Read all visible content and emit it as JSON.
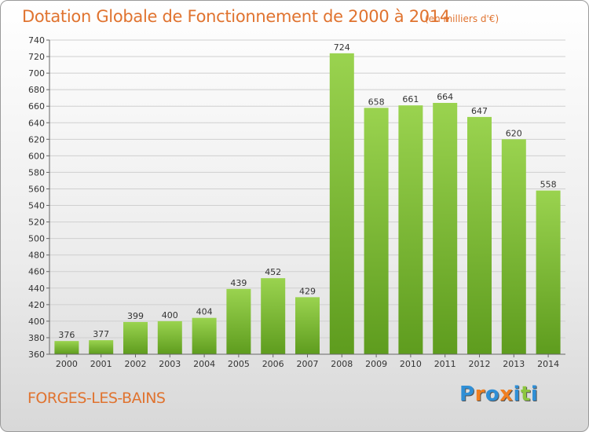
{
  "title": "Dotation Globale de Fonctionnement de 2000 à 2014",
  "unit": "(en milliers d'€)",
  "commune": "FORGES-LES-BAINS",
  "logo": {
    "letters": [
      "P",
      "r",
      "o",
      "x",
      "i",
      "t",
      "i"
    ],
    "colors": [
      "#2f8fd6",
      "#f07f20",
      "#2f8fd6",
      "#f07f20",
      "#2f8fd6",
      "#8dc63f",
      "#2f8fd6"
    ]
  },
  "colors": {
    "bar_top": "#9ad34f",
    "bar_bottom": "#5e9c1e",
    "text_accent": "#e0732f"
  },
  "chart_data": {
    "type": "bar",
    "title": "Dotation Globale de Fonctionnement de 2000 à 2014",
    "subtitle": "(en milliers d'€)",
    "xlabel": "",
    "ylabel": "",
    "categories": [
      "2000",
      "2001",
      "2002",
      "2003",
      "2004",
      "2005",
      "2006",
      "2007",
      "2008",
      "2009",
      "2010",
      "2011",
      "2012",
      "2013",
      "2014"
    ],
    "values": [
      376,
      377,
      399,
      400,
      404,
      439,
      452,
      429,
      724,
      658,
      661,
      664,
      647,
      620,
      558
    ],
    "ylim": [
      360,
      740
    ],
    "yticks": [
      360,
      380,
      400,
      420,
      440,
      460,
      480,
      500,
      520,
      540,
      560,
      580,
      600,
      620,
      640,
      660,
      680,
      700,
      720,
      740
    ],
    "grid": true
  }
}
